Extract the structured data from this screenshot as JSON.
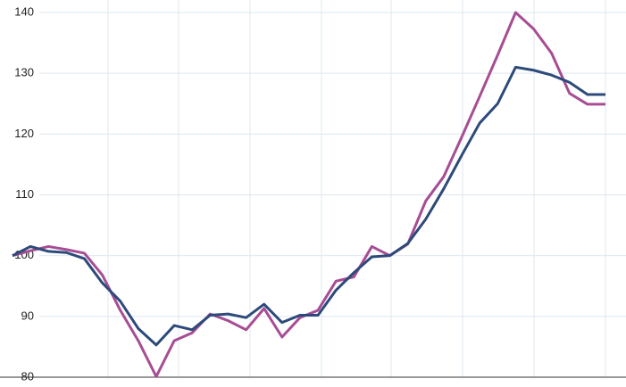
{
  "chart_data": {
    "type": "line",
    "categories": [
      null,
      null,
      null,
      null,
      null,
      null,
      null,
      null,
      null,
      null,
      null,
      null,
      null,
      null,
      null,
      null,
      null,
      null,
      null,
      null,
      null,
      null,
      null,
      null,
      null,
      null,
      null,
      null,
      null,
      null,
      null,
      null,
      null,
      null
    ],
    "series": [
      {
        "color": "#a64d94",
        "values": [
          100,
          100.8,
          101.5,
          101,
          100.4,
          96.8,
          91,
          86,
          80.1,
          86,
          87.3,
          90.4,
          89.3,
          87.8,
          91.3,
          86.6,
          89.8,
          91,
          95.8,
          96.5,
          101.5,
          100,
          101.9,
          109,
          113,
          119.5,
          126.2,
          133,
          140,
          137.3,
          133.3,
          126.7,
          124.9,
          124.9
        ]
      },
      {
        "color": "#2d4a7a",
        "values": [
          100,
          101.5,
          100.7,
          100.5,
          99.5,
          95.5,
          92.5,
          88,
          85.3,
          88.5,
          87.8,
          90.2,
          90.4,
          89.8,
          92,
          89,
          90.2,
          90.2,
          94.3,
          97.2,
          99.8,
          100,
          102,
          106,
          111,
          116.5,
          121.8,
          125,
          131,
          130.5,
          129.7,
          128.5,
          126.5,
          126.5
        ]
      }
    ],
    "ylim": [
      80,
      140
    ],
    "yticks": [
      80,
      90,
      100,
      110,
      120,
      130,
      140
    ],
    "grid": true
  }
}
